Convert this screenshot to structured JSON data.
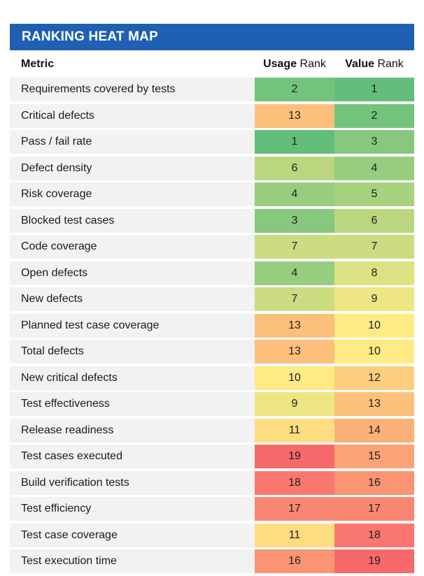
{
  "title": "RANKING HEAT MAP",
  "headers": {
    "metric": "Metric",
    "usage_bold": "Usage",
    "usage_rest": " Rank",
    "value_bold": "Value",
    "value_rest": " Rank"
  },
  "colors": {
    "title_bg": "#1f60b4",
    "row_bg": "#f2f2f2",
    "scale_best": "#63be7b",
    "scale_mid": "#ffeb84",
    "scale_worst": "#f8696b"
  },
  "chart_data": {
    "type": "heatmap",
    "title": "RANKING HEAT MAP",
    "row_header": "Metric",
    "columns": [
      "Usage Rank",
      "Value Rank"
    ],
    "rank_range": [
      1,
      19
    ],
    "color_scale": "green (rank 1) → yellow → red (rank 19)",
    "rows": [
      {
        "metric": "Requirements covered by tests",
        "usage": 2,
        "value": 1
      },
      {
        "metric": "Critical defects",
        "usage": 13,
        "value": 2
      },
      {
        "metric": "Pass / fail rate",
        "usage": 1,
        "value": 3
      },
      {
        "metric": "Defect density",
        "usage": 6,
        "value": 4
      },
      {
        "metric": "Risk coverage",
        "usage": 4,
        "value": 5
      },
      {
        "metric": "Blocked test cases",
        "usage": 3,
        "value": 6
      },
      {
        "metric": "Code coverage",
        "usage": 7,
        "value": 7
      },
      {
        "metric": "Open defects",
        "usage": 4,
        "value": 8
      },
      {
        "metric": "New defects",
        "usage": 7,
        "value": 9
      },
      {
        "metric": "Planned test case coverage",
        "usage": 13,
        "value": 10
      },
      {
        "metric": "Total defects",
        "usage": 13,
        "value": 10
      },
      {
        "metric": "New critical defects",
        "usage": 10,
        "value": 12
      },
      {
        "metric": "Test effectiveness",
        "usage": 9,
        "value": 13
      },
      {
        "metric": "Release readiness",
        "usage": 11,
        "value": 14
      },
      {
        "metric": "Test cases executed",
        "usage": 19,
        "value": 15
      },
      {
        "metric": "Build verification tests",
        "usage": 18,
        "value": 16
      },
      {
        "metric": "Test efficiency",
        "usage": 17,
        "value": 17
      },
      {
        "metric": "Test case coverage",
        "usage": 11,
        "value": 18
      },
      {
        "metric": "Test execution time",
        "usage": 16,
        "value": 19
      }
    ]
  }
}
